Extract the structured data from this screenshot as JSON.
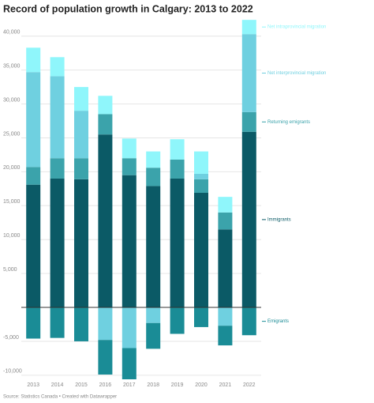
{
  "chart_data": {
    "type": "stacked-bar",
    "title": "Record of population growth in Calgary: 2013 to 2022",
    "source": "Source: Statistics Canada • Created with Datawrapper",
    "categories": [
      "2013",
      "2014",
      "2015",
      "2016",
      "2017",
      "2018",
      "2019",
      "2020",
      "2021",
      "2022"
    ],
    "series": [
      {
        "name": "Immigrants",
        "color": "#0b5a66",
        "values": [
          18100,
          19000,
          18900,
          25500,
          19500,
          17900,
          19000,
          16900,
          11500,
          25900
        ]
      },
      {
        "name": "Returning emigrants",
        "color": "#3ba3ab",
        "values": [
          2600,
          3000,
          3100,
          3000,
          2500,
          2700,
          2800,
          2000,
          2500,
          2900
        ]
      },
      {
        "name": "Net interprovincial migration",
        "color": "#6fd0e0",
        "values": [
          14000,
          12100,
          7000,
          -4800,
          -6000,
          -2300,
          0,
          800,
          -2700,
          11500
        ]
      },
      {
        "name": "Net intraprovincial migration",
        "color": "#8ff6fb",
        "values": [
          3600,
          2800,
          3500,
          2700,
          2900,
          2400,
          3000,
          3300,
          2300,
          2100
        ]
      },
      {
        "name": "Emigrants",
        "color": "#1a8c96",
        "values": [
          -4600,
          -4500,
          -5000,
          -5100,
          -4600,
          -3800,
          -3900,
          -2900,
          -2900,
          -4100
        ]
      }
    ],
    "ylim": [
      -10600,
      43000
    ],
    "yticks": [
      {
        "value": -10000,
        "label": "-10,000"
      },
      {
        "value": -5000,
        "label": "-5,000"
      },
      {
        "value": 5000,
        "label": "5,000"
      },
      {
        "value": 10000,
        "label": "10,000"
      },
      {
        "value": 15000,
        "label": "15,000"
      },
      {
        "value": 20000,
        "label": "20,000"
      },
      {
        "value": 25000,
        "label": "25,000"
      },
      {
        "value": 30000,
        "label": "30,000"
      },
      {
        "value": 35000,
        "label": "35,000"
      },
      {
        "value": 40000,
        "label": "40,000"
      }
    ],
    "grid": true
  }
}
